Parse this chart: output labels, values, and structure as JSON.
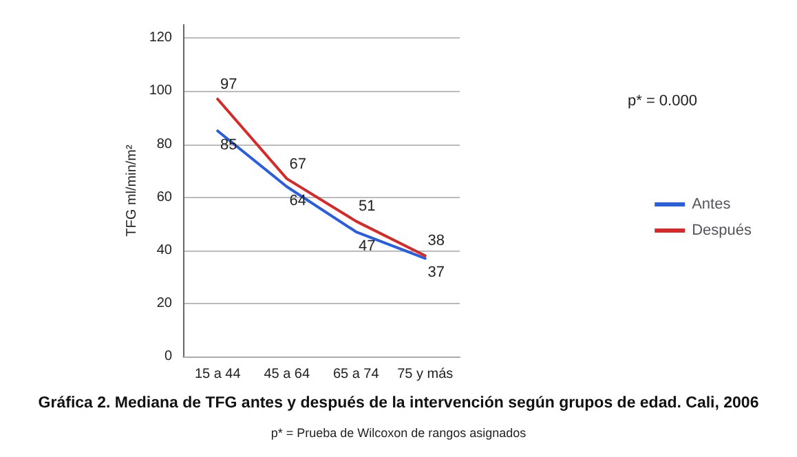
{
  "chart_data": {
    "type": "line",
    "title": "Gráfica 2. Mediana de TFG antes y después de la intervención según grupos de edad. Cali, 2006",
    "ylabel": "TFG ml/min/m²",
    "categories": [
      "15 a 44",
      "45 a 64",
      "65 a 74",
      "75 y más"
    ],
    "series": [
      {
        "name": "Antes",
        "color": "#2b5fd9",
        "values": [
          85,
          64,
          47,
          37
        ]
      },
      {
        "name": "Después",
        "color": "#d42a2a",
        "values": [
          97,
          67,
          51,
          38
        ]
      }
    ],
    "ylim": [
      0,
      125
    ],
    "yticks": [
      0,
      20,
      40,
      60,
      80,
      100,
      120
    ],
    "grid": "y",
    "legend": "right",
    "marker": "none",
    "line_style": "solid",
    "data_labels": true,
    "annotations": [
      "p* = 0.000",
      "p* = Prueba de Wilcoxon de rangos asignados"
    ]
  }
}
